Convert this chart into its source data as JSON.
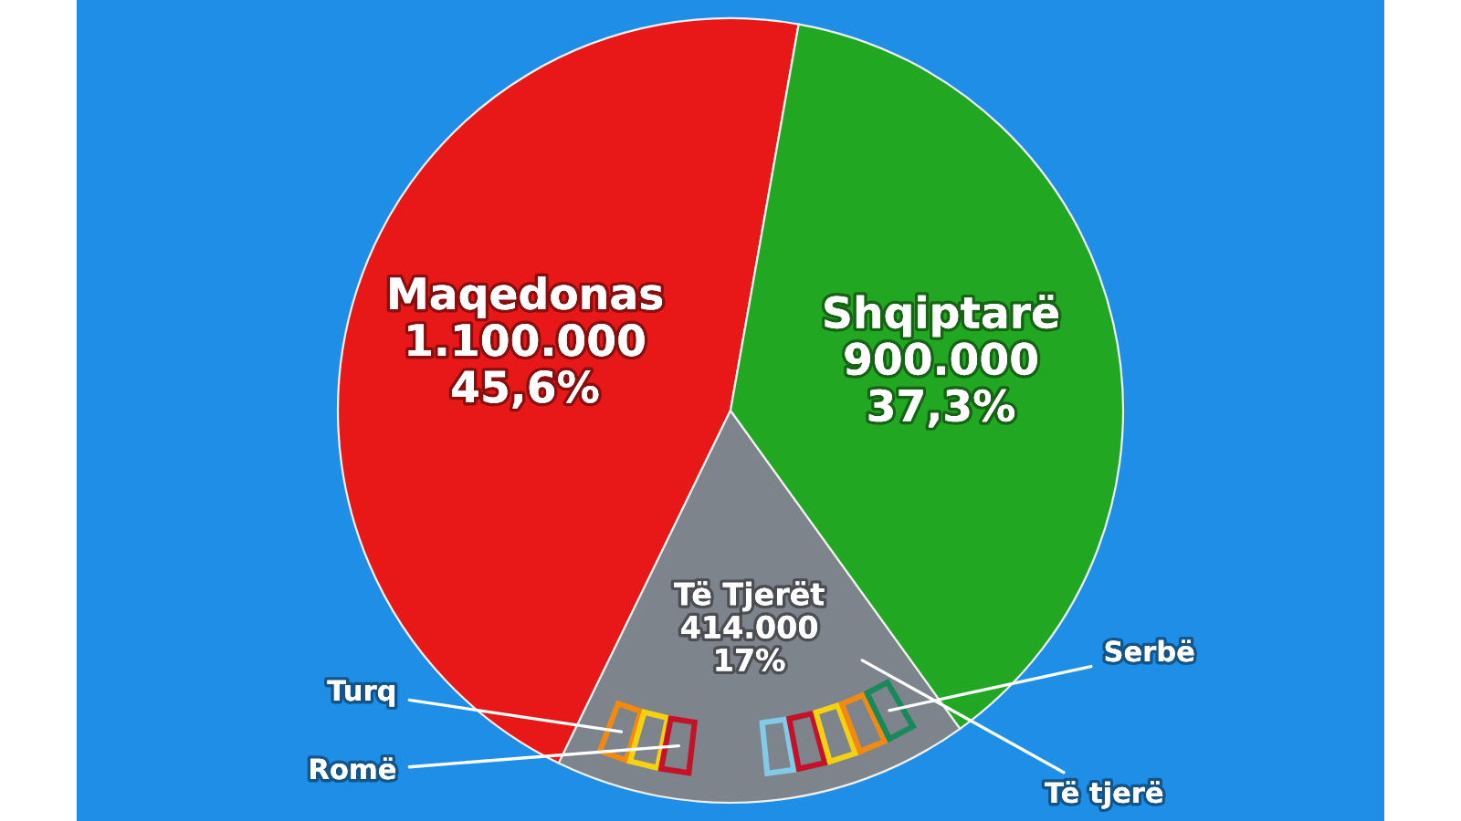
{
  "chart_data": {
    "type": "pie",
    "categories": [
      "Maqedonas",
      "Të Tjerët",
      "Shqiptarë"
    ],
    "values": [
      1100000,
      414000,
      900000
    ],
    "colors": [
      "#e81818",
      "#7d848c",
      "#22a722"
    ],
    "value_labels": [
      "1.100.000\n45,6%",
      "414.000\n17%",
      "900.000\n37,3%"
    ],
    "annotations": [
      "Turq",
      "Romë",
      "Serbë",
      "Të tjerë"
    ]
  }
}
